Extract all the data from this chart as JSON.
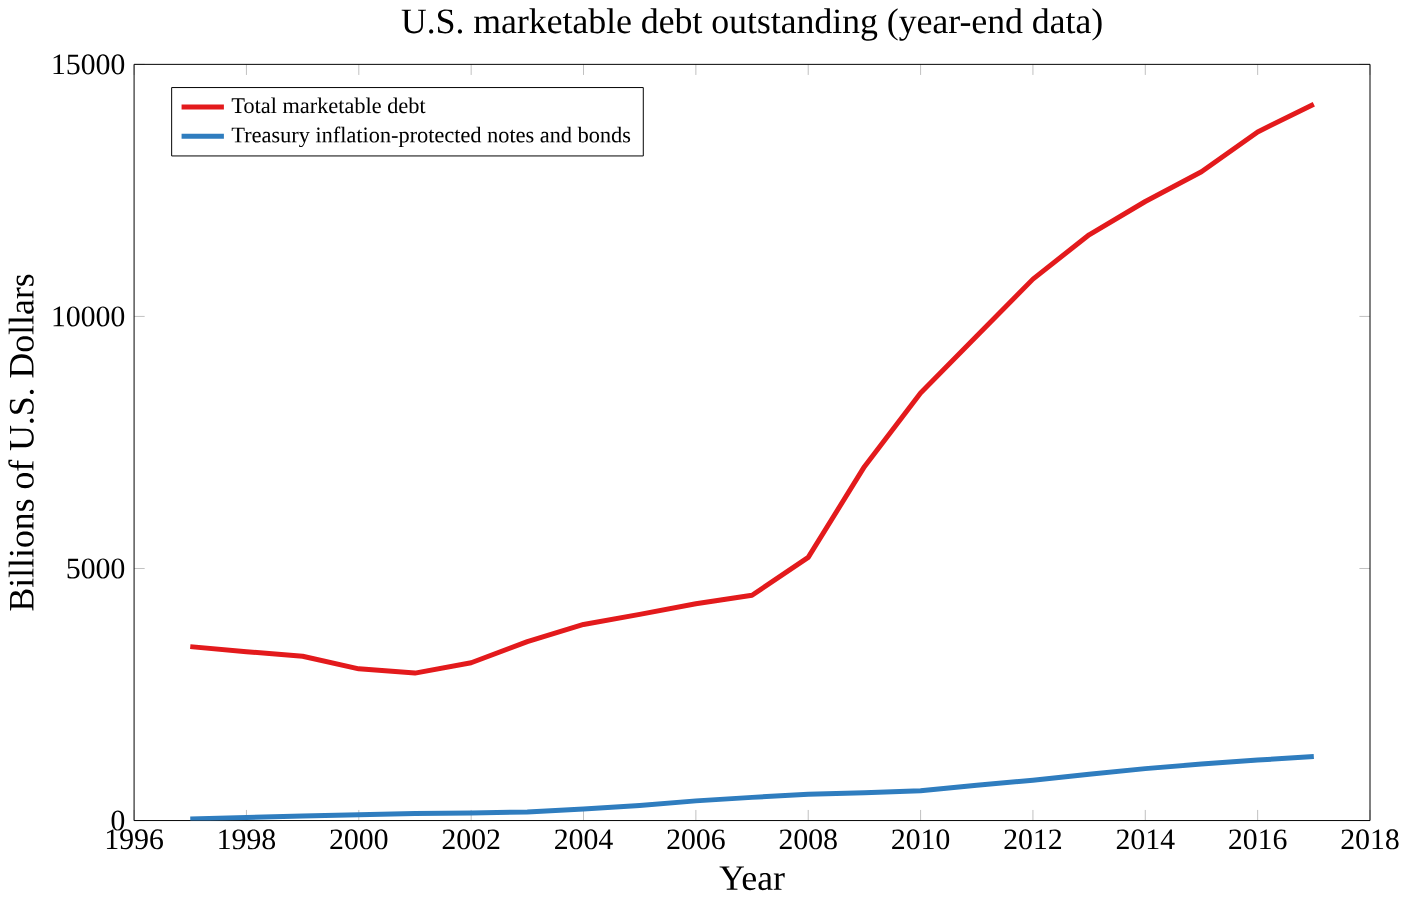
{
  "chart_data": {
    "type": "line",
    "title": "U.S. marketable debt outstanding (year-end data)",
    "xlabel": "Year",
    "ylabel": "Billions of U.S. Dollars",
    "x": [
      1997,
      1998,
      1999,
      2000,
      2001,
      2002,
      2003,
      2004,
      2005,
      2006,
      2007,
      2008,
      2009,
      2010,
      2011,
      2012,
      2013,
      2014,
      2015,
      2016,
      2017
    ],
    "series": [
      {
        "name": "Total marketable debt",
        "color": "#e31a1c",
        "values": [
          3450,
          3350,
          3260,
          3010,
          2925,
          3130,
          3550,
          3890,
          4090,
          4300,
          4470,
          5220,
          7020,
          8480,
          9610,
          10740,
          11620,
          12280,
          12870,
          13660,
          14210
        ]
      },
      {
        "name": "Treasury inflation-protected notes and bonds",
        "color": "#2f7dbf",
        "values": [
          30,
          60,
          90,
          115,
          140,
          150,
          170,
          230,
          300,
          390,
          460,
          520,
          550,
          590,
          700,
          800,
          920,
          1030,
          1120,
          1200,
          1270
        ]
      }
    ],
    "xlim": [
      1996,
      2018
    ],
    "xticks": [
      1996,
      1998,
      2000,
      2002,
      2004,
      2006,
      2008,
      2010,
      2012,
      2014,
      2016,
      2018
    ],
    "ylim": [
      0,
      15000
    ],
    "yticks": [
      0,
      5000,
      10000,
      15000
    ],
    "grid": false,
    "legend": "top left",
    "marker": "none",
    "line_style": "solid"
  }
}
